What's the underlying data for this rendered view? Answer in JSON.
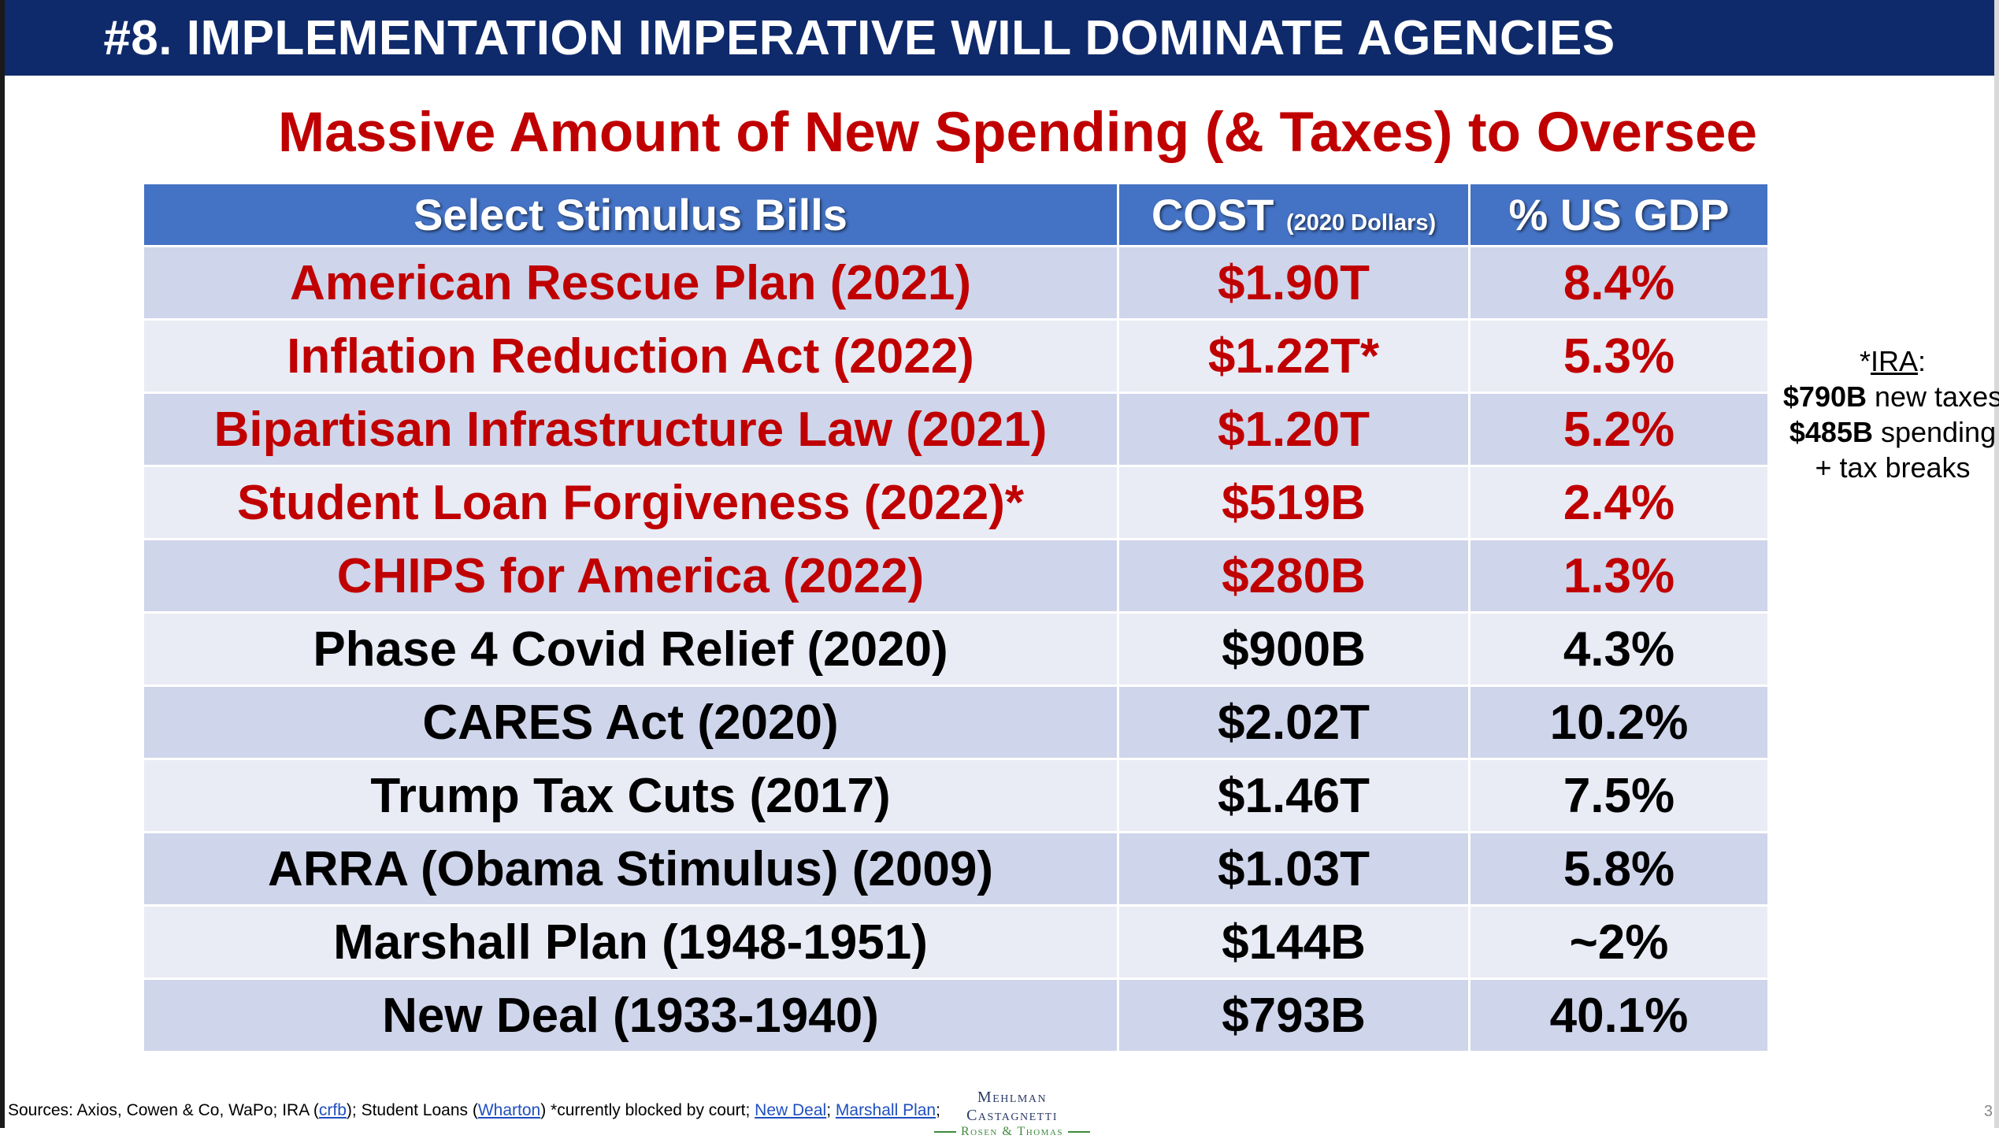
{
  "header": {
    "title": "#8. IMPLEMENTATION IMPERATIVE WILL DOMINATE AGENCIES"
  },
  "subtitle": "Massive Amount of New Spending (& Taxes) to Oversee",
  "table": {
    "columns": {
      "bill": "Select Stimulus Bills",
      "cost": "COST",
      "cost_note": "(2020 Dollars)",
      "gdp": "% US GDP"
    },
    "rows": [
      {
        "bill": "American Rescue Plan (2021)",
        "cost": "$1.90T",
        "gdp": "8.4%",
        "highlight": true
      },
      {
        "bill": "Inflation Reduction Act (2022)",
        "cost": "$1.22T*",
        "gdp": "5.3%",
        "highlight": true
      },
      {
        "bill": "Bipartisan Infrastructure Law (2021)",
        "cost": "$1.20T",
        "gdp": "5.2%",
        "highlight": true
      },
      {
        "bill": "Student Loan Forgiveness (2022)*",
        "cost": "$519B",
        "gdp": "2.4%",
        "highlight": true
      },
      {
        "bill": "CHIPS for America (2022)",
        "cost": "$280B",
        "gdp": "1.3%",
        "highlight": true
      },
      {
        "bill": "Phase 4 Covid Relief (2020)",
        "cost": "$900B",
        "gdp": "4.3%",
        "highlight": false
      },
      {
        "bill": "CARES Act (2020)",
        "cost": "$2.02T",
        "gdp": "10.2%",
        "highlight": false
      },
      {
        "bill": "Trump Tax Cuts (2017)",
        "cost": "$1.46T",
        "gdp": "7.5%",
        "highlight": false
      },
      {
        "bill": "ARRA (Obama Stimulus) (2009)",
        "cost": "$1.03T",
        "gdp": "5.8%",
        "highlight": false
      },
      {
        "bill": "Marshall Plan (1948-1951)",
        "cost": "$144B",
        "gdp": "~2%",
        "highlight": false
      },
      {
        "bill": "New Deal (1933-1940)",
        "cost": "$793B",
        "gdp": "40.1%",
        "highlight": false
      }
    ]
  },
  "ira_note": {
    "star": "*",
    "label": "IRA",
    "colon": ":",
    "taxes_amount": "$790B",
    "taxes_text": " new taxes",
    "spending_amount": "$485B",
    "spending_text": " spending",
    "breaks_text": "+ tax breaks"
  },
  "sources": {
    "prefix": "Sources: Axios, Cowen & Co, WaPo; IRA (",
    "link_crfb": "crfb",
    "mid1": "); Student Loans (",
    "link_wharton": "Wharton",
    "mid2": ") *currently blocked by court; ",
    "link_new_deal": "New Deal",
    "sep": "; ",
    "link_marshall": "Marshall Plan",
    "suffix": ";"
  },
  "logo": {
    "line1": "Mehlman Castagnetti",
    "line2": "Rosen & Thomas"
  },
  "page_number": "3",
  "colors": {
    "header_bg": "#0f2a6b",
    "subtitle": "#c00000",
    "table_header_bg": "#4472c4",
    "row_odd": "#cfd5ea",
    "row_even": "#e9ebf5",
    "highlight_text": "#c00000",
    "link": "#1f4fbf"
  }
}
